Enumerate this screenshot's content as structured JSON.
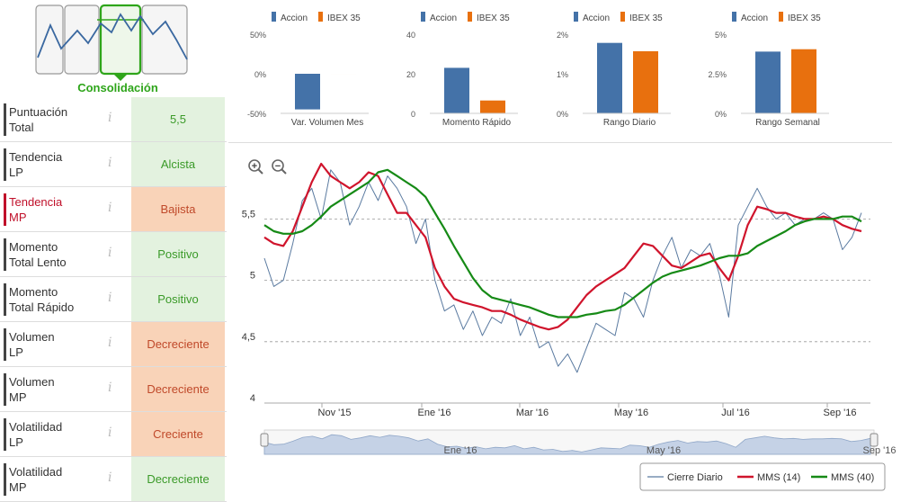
{
  "consolidation": {
    "label": "Consolidación",
    "panels": 4,
    "active_panel": 2
  },
  "indicators": [
    {
      "label": "Puntuación\nTotal",
      "value": "5,5",
      "status": "positive",
      "highlight": false
    },
    {
      "label": "Tendencia\nLP",
      "value": "Alcista",
      "status": "positive",
      "highlight": false
    },
    {
      "label": "Tendencia\nMP",
      "value": "Bajista",
      "status": "negative",
      "highlight": true
    },
    {
      "label": "Momento\nTotal Lento",
      "value": "Positivo",
      "status": "positive",
      "highlight": false
    },
    {
      "label": "Momento\nTotal Rápido",
      "value": "Positivo",
      "status": "positive",
      "highlight": false
    },
    {
      "label": "Volumen\nLP",
      "value": "Decreciente",
      "status": "negative",
      "highlight": false
    },
    {
      "label": "Volumen\nMP",
      "value": "Decreciente",
      "status": "negative",
      "highlight": false
    },
    {
      "label": "Volatilidad\nLP",
      "value": "Creciente",
      "status": "negative",
      "highlight": false
    },
    {
      "label": "Volatilidad\nMP",
      "value": "Decreciente",
      "status": "positive",
      "highlight": false
    }
  ],
  "info_glyph": "i",
  "colors": {
    "accion": "#4472a8",
    "ibex": "#e8700e",
    "price": "#5a7aa0",
    "mms14": "#d0142c",
    "mms40": "#168a16",
    "active": "#2ea51a",
    "positive_bg": "#e3f2df",
    "negative_bg": "#f9d3b8"
  },
  "mini_charts": [
    {
      "legend": [
        "Accion",
        "IBEX 35"
      ],
      "title": "Var. Volumen Mes",
      "yticks": [
        "50%",
        "0%",
        "-50%"
      ],
      "ylim": [
        -50,
        50
      ],
      "values": [
        -45,
        0
      ]
    },
    {
      "legend": [
        "Accion",
        "IBEX 35"
      ],
      "title": "Momento Rápido",
      "yticks": [
        "40",
        "20",
        "0"
      ],
      "ylim": [
        0,
        40
      ],
      "values": [
        23,
        6.5
      ]
    },
    {
      "legend": [
        "Accion",
        "IBEX 35"
      ],
      "title": "Rango Diario",
      "yticks": [
        "2%",
        "1%",
        "0%"
      ],
      "ylim": [
        0,
        2
      ],
      "values": [
        1.78,
        1.57
      ]
    },
    {
      "legend": [
        "Accion",
        "IBEX 35"
      ],
      "title": "Rango Semanal",
      "yticks": [
        "5%",
        "2.5%",
        "0%"
      ],
      "ylim": [
        0,
        5
      ],
      "values": [
        3.9,
        4.05
      ]
    }
  ],
  "main_chart": {
    "yticks": [
      "5,5",
      "5",
      "4,5",
      "4"
    ],
    "xticks": [
      "Nov '15",
      "Ene '16",
      "Mar '16",
      "May '16",
      "Jul '16",
      "Sep '16"
    ],
    "navigator_labels": [
      "Ene '16",
      "May '16",
      "Sep '16"
    ],
    "legend": [
      "Cierre Diario",
      "MMS (14)",
      "MMS (40)"
    ],
    "zoom_in": "+",
    "zoom_out": "−"
  },
  "chart_data": {
    "type": "line",
    "x_start": "Oct '15",
    "x_end": "Sep '16",
    "ylim": [
      4,
      5.95
    ],
    "yticks": [
      5.5,
      5,
      4.5,
      4
    ],
    "series": [
      {
        "name": "Cierre Diario",
        "values": [
          5.18,
          4.95,
          5.0,
          5.3,
          5.65,
          5.75,
          5.5,
          5.9,
          5.8,
          5.45,
          5.6,
          5.8,
          5.65,
          5.85,
          5.75,
          5.6,
          5.3,
          5.5,
          5.0,
          4.75,
          4.8,
          4.6,
          4.75,
          4.55,
          4.7,
          4.65,
          4.85,
          4.55,
          4.7,
          4.45,
          4.5,
          4.3,
          4.4,
          4.25,
          4.45,
          4.65,
          4.6,
          4.55,
          4.9,
          4.85,
          4.7,
          5.0,
          5.2,
          5.35,
          5.1,
          5.25,
          5.2,
          5.3,
          5.05,
          4.7,
          5.45,
          5.6,
          5.75,
          5.6,
          5.5,
          5.55,
          5.45,
          5.5,
          5.5,
          5.55,
          5.5,
          5.25,
          5.35,
          5.55
        ]
      },
      {
        "name": "MMS (14)",
        "values": [
          5.35,
          5.3,
          5.28,
          5.4,
          5.6,
          5.8,
          5.95,
          5.85,
          5.8,
          5.75,
          5.8,
          5.88,
          5.85,
          5.7,
          5.55,
          5.55,
          5.45,
          5.35,
          5.1,
          4.95,
          4.85,
          4.82,
          4.8,
          4.78,
          4.75,
          4.75,
          4.72,
          4.68,
          4.65,
          4.62,
          4.6,
          4.62,
          4.68,
          4.78,
          4.88,
          4.95,
          5.0,
          5.05,
          5.1,
          5.2,
          5.3,
          5.28,
          5.2,
          5.12,
          5.1,
          5.15,
          5.2,
          5.22,
          5.1,
          5.0,
          5.2,
          5.45,
          5.6,
          5.58,
          5.55,
          5.55,
          5.52,
          5.5,
          5.5,
          5.52,
          5.5,
          5.45,
          5.42,
          5.4
        ]
      },
      {
        "name": "MMS (40)",
        "values": [
          5.45,
          5.4,
          5.38,
          5.38,
          5.4,
          5.45,
          5.52,
          5.6,
          5.65,
          5.7,
          5.75,
          5.8,
          5.88,
          5.9,
          5.85,
          5.8,
          5.75,
          5.68,
          5.55,
          5.42,
          5.28,
          5.15,
          5.02,
          4.92,
          4.86,
          4.84,
          4.82,
          4.8,
          4.78,
          4.75,
          4.72,
          4.7,
          4.7,
          4.7,
          4.72,
          4.73,
          4.75,
          4.76,
          4.8,
          4.86,
          4.92,
          4.98,
          5.03,
          5.06,
          5.08,
          5.1,
          5.12,
          5.15,
          5.18,
          5.2,
          5.2,
          5.22,
          5.28,
          5.32,
          5.36,
          5.4,
          5.45,
          5.48,
          5.5,
          5.5,
          5.5,
          5.52,
          5.52,
          5.48
        ]
      }
    ],
    "legend_position": "bottom-right",
    "grid": true
  }
}
